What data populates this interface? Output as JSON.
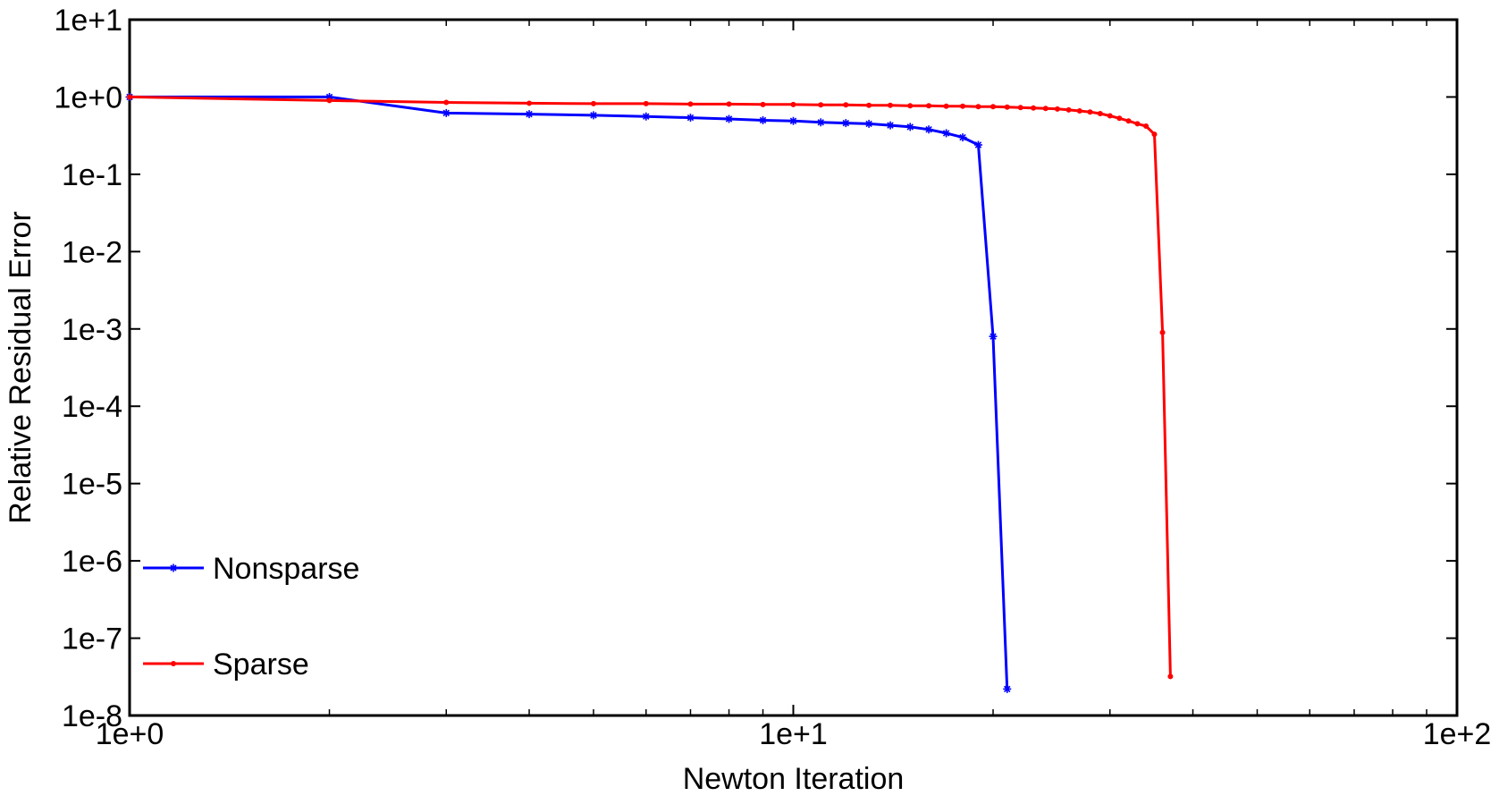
{
  "chart_data": {
    "type": "line",
    "title": "",
    "xlabel": "Newton Iteration",
    "ylabel": "Relative Residual Error",
    "xscale": "log",
    "yscale": "log",
    "xlim": [
      1,
      100
    ],
    "ylim": [
      1e-08,
      10
    ],
    "grid": false,
    "legend_position": "bottom-left",
    "x_ticks": [
      {
        "value": 1,
        "label": "1e+0"
      },
      {
        "value": 10,
        "label": "1e+1"
      },
      {
        "value": 100,
        "label": "1e+2"
      }
    ],
    "y_ticks": [
      {
        "value": 10,
        "label": "1e+1"
      },
      {
        "value": 1,
        "label": "1e+0"
      },
      {
        "value": 0.1,
        "label": "1e-1"
      },
      {
        "value": 0.01,
        "label": "1e-2"
      },
      {
        "value": 0.001,
        "label": "1e-3"
      },
      {
        "value": 0.0001,
        "label": "1e-4"
      },
      {
        "value": 1e-05,
        "label": "1e-5"
      },
      {
        "value": 1e-06,
        "label": "1e-6"
      },
      {
        "value": 1e-07,
        "label": "1e-7"
      },
      {
        "value": 1e-08,
        "label": "1e-8"
      }
    ],
    "series": [
      {
        "name": "Nonsparse",
        "color": "#0000ff",
        "marker": "asterisk",
        "x": [
          1,
          2,
          3,
          4,
          5,
          6,
          7,
          8,
          9,
          10,
          11,
          12,
          13,
          14,
          15,
          16,
          17,
          18,
          19,
          20,
          21
        ],
        "y": [
          1.0,
          1.0,
          0.62,
          0.6,
          0.58,
          0.56,
          0.54,
          0.52,
          0.5,
          0.49,
          0.47,
          0.46,
          0.45,
          0.43,
          0.41,
          0.38,
          0.34,
          0.3,
          0.24,
          0.0008,
          2.2e-08
        ]
      },
      {
        "name": "Sparse",
        "color": "#ff0000",
        "marker": "dot",
        "x": [
          1,
          2,
          3,
          4,
          5,
          6,
          7,
          8,
          9,
          10,
          11,
          12,
          13,
          14,
          15,
          16,
          17,
          18,
          19,
          20,
          21,
          22,
          23,
          24,
          25,
          26,
          27,
          28,
          29,
          30,
          31,
          32,
          33,
          34,
          35,
          36,
          37
        ],
        "y": [
          1.0,
          0.9,
          0.85,
          0.83,
          0.82,
          0.82,
          0.81,
          0.81,
          0.8,
          0.8,
          0.79,
          0.79,
          0.78,
          0.78,
          0.77,
          0.77,
          0.76,
          0.76,
          0.75,
          0.75,
          0.74,
          0.73,
          0.72,
          0.71,
          0.7,
          0.68,
          0.66,
          0.64,
          0.61,
          0.57,
          0.53,
          0.49,
          0.45,
          0.42,
          0.33,
          0.0009,
          3.2e-08
        ]
      }
    ]
  }
}
